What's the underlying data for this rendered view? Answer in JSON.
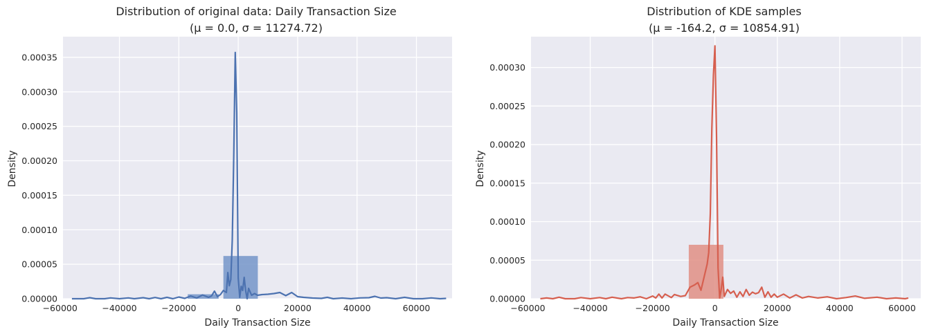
{
  "chart_data": [
    {
      "type": "histogram+kde",
      "title": "Distribution of original data: Daily Transaction Size",
      "subtitle": "(μ = 0.0, σ = 11274.72)",
      "xlabel": "Daily Transaction Size",
      "ylabel": "Density",
      "xlim": [
        -59000,
        72000
      ],
      "ylim": [
        0,
        0.00038
      ],
      "xticks": [
        -60000,
        -40000,
        -20000,
        0,
        20000,
        40000,
        60000
      ],
      "xtick_labels": [
        "−60000",
        "−40000",
        "−20000",
        "0",
        "20000",
        "40000",
        "60000"
      ],
      "yticks": [
        0,
        5e-05,
        0.0001,
        0.00015,
        0.0002,
        0.00025,
        0.0003,
        0.00035
      ],
      "ytick_labels": [
        "0.00000",
        "0.00005",
        "0.00010",
        "0.00015",
        "0.00020",
        "0.00025",
        "0.00030",
        "0.00035"
      ],
      "grid": true,
      "colors": {
        "line": "#4c72b0",
        "bar": "#7495c9"
      },
      "histogram": [
        {
          "x0": -17000,
          "x1": -6600,
          "value": 6.5e-06
        },
        {
          "x0": -5000,
          "x1": 6600,
          "value": 6.2e-05
        }
      ],
      "kde": [
        [
          -56000,
          0
        ],
        [
          -52000,
          0
        ],
        [
          -50000,
          1.5e-06
        ],
        [
          -48000,
          0
        ],
        [
          -45000,
          0
        ],
        [
          -43000,
          1.2e-06
        ],
        [
          -40000,
          0
        ],
        [
          -37000,
          1.2e-06
        ],
        [
          -35000,
          0
        ],
        [
          -32000,
          1.5e-06
        ],
        [
          -30000,
          0
        ],
        [
          -28000,
          1.8e-06
        ],
        [
          -26000,
          0
        ],
        [
          -24000,
          2e-06
        ],
        [
          -22000,
          0
        ],
        [
          -20000,
          2.5e-06
        ],
        [
          -18000,
          5e-07
        ],
        [
          -16000,
          4e-06
        ],
        [
          -14000,
          1e-06
        ],
        [
          -12000,
          5.5e-06
        ],
        [
          -10000,
          2e-06
        ],
        [
          -9000,
          4e-06
        ],
        [
          -8000,
          1.1e-05
        ],
        [
          -7000,
          3e-06
        ],
        [
          -6000,
          6e-06
        ],
        [
          -5000,
          1.2e-05
        ],
        [
          -4000,
          9e-06
        ],
        [
          -3500,
          3.8e-05
        ],
        [
          -3000,
          1.9e-05
        ],
        [
          -2500,
          2.8e-05
        ],
        [
          -2000,
          8.5e-05
        ],
        [
          -1500,
          0.00021
        ],
        [
          -1000,
          0.000357
        ],
        [
          -500,
          0.00027
        ],
        [
          0,
          3e-05
        ],
        [
          500,
          2e-06
        ],
        [
          1000,
          1.8e-05
        ],
        [
          1500,
          1.2e-05
        ],
        [
          2000,
          3.1e-05
        ],
        [
          2500,
          1.2e-05
        ],
        [
          3000,
          0
        ],
        [
          3500,
          1.5e-05
        ],
        [
          4500,
          5e-06
        ],
        [
          5500,
          7.5e-06
        ],
        [
          6500,
          5e-06
        ],
        [
          8000,
          6e-06
        ],
        [
          10000,
          6.5e-06
        ],
        [
          12000,
          7.5e-06
        ],
        [
          14000,
          9e-06
        ],
        [
          16000,
          4.5e-06
        ],
        [
          18000,
          9e-06
        ],
        [
          20000,
          3e-06
        ],
        [
          22000,
          2e-06
        ],
        [
          25000,
          1e-06
        ],
        [
          28000,
          5e-07
        ],
        [
          30000,
          2e-06
        ],
        [
          32000,
          0
        ],
        [
          35000,
          1e-06
        ],
        [
          38000,
          0
        ],
        [
          41000,
          1.2e-06
        ],
        [
          44000,
          1.5e-06
        ],
        [
          46000,
          3.5e-06
        ],
        [
          48000,
          1e-06
        ],
        [
          50000,
          1.5e-06
        ],
        [
          53000,
          0
        ],
        [
          56000,
          2e-06
        ],
        [
          59000,
          0
        ],
        [
          62000,
          0
        ],
        [
          65000,
          1.2e-06
        ],
        [
          68000,
          0
        ],
        [
          70000,
          5e-07
        ]
      ]
    },
    {
      "type": "histogram+kde",
      "title": "Distribution of KDE samples",
      "subtitle": "(μ = -164.2, σ = 10854.91)",
      "xlabel": "Daily Transaction Size",
      "ylabel": "Density",
      "xlim": [
        -59000,
        66000
      ],
      "ylim": [
        0,
        0.00034
      ],
      "xticks": [
        -60000,
        -40000,
        -20000,
        0,
        20000,
        40000,
        60000
      ],
      "xtick_labels": [
        "−60000",
        "−40000",
        "−20000",
        "0",
        "20000",
        "40000",
        "60000"
      ],
      "yticks": [
        0,
        5e-05,
        0.0001,
        0.00015,
        0.0002,
        0.00025,
        0.0003
      ],
      "ytick_labels": [
        "0.00000",
        "0.00005",
        "0.00010",
        "0.00015",
        "0.00020",
        "0.00025",
        "0.00030"
      ],
      "grid": true,
      "colors": {
        "line": "#d65f4f",
        "bar": "#e08f85"
      },
      "histogram": [
        {
          "x0": -8400,
          "x1": 2700,
          "value": 7e-05
        }
      ],
      "kde": [
        [
          -56000,
          0
        ],
        [
          -54000,
          1e-06
        ],
        [
          -52000,
          0
        ],
        [
          -50000,
          2e-06
        ],
        [
          -48000,
          0
        ],
        [
          -45000,
          0
        ],
        [
          -43000,
          1.5e-06
        ],
        [
          -40000,
          0
        ],
        [
          -37000,
          1.5e-06
        ],
        [
          -35000,
          0
        ],
        [
          -33000,
          2e-06
        ],
        [
          -30000,
          0
        ],
        [
          -28000,
          1.5e-06
        ],
        [
          -26000,
          1e-06
        ],
        [
          -24000,
          2.5e-06
        ],
        [
          -22000,
          0
        ],
        [
          -20000,
          3.5e-06
        ],
        [
          -19000,
          1e-06
        ],
        [
          -18000,
          6e-06
        ],
        [
          -17000,
          1e-06
        ],
        [
          -16000,
          6e-06
        ],
        [
          -14000,
          1.5e-06
        ],
        [
          -13000,
          5.5e-06
        ],
        [
          -11000,
          3e-06
        ],
        [
          -9500,
          4e-06
        ],
        [
          -8000,
          1.5e-05
        ],
        [
          -6500,
          1.8e-05
        ],
        [
          -5500,
          2.1e-05
        ],
        [
          -4500,
          1.1e-05
        ],
        [
          -3500,
          2.8e-05
        ],
        [
          -2500,
          4.5e-05
        ],
        [
          -2000,
          6e-05
        ],
        [
          -1500,
          0.00011
        ],
        [
          -1000,
          0.00022
        ],
        [
          -500,
          0.00029
        ],
        [
          0,
          0.000328
        ],
        [
          500,
          0.00021
        ],
        [
          1000,
          4e-05
        ],
        [
          1500,
          1e-06
        ],
        [
          2000,
          1.2e-05
        ],
        [
          2500,
          2.8e-05
        ],
        [
          3000,
          3e-06
        ],
        [
          4000,
          1.2e-05
        ],
        [
          5000,
          7e-06
        ],
        [
          6000,
          1e-05
        ],
        [
          7000,
          2e-06
        ],
        [
          8000,
          9e-06
        ],
        [
          9000,
          3e-06
        ],
        [
          10000,
          1.2e-05
        ],
        [
          11000,
          4.5e-06
        ],
        [
          12000,
          8.5e-06
        ],
        [
          13000,
          6.5e-06
        ],
        [
          14000,
          8e-06
        ],
        [
          15000,
          1.5e-05
        ],
        [
          16000,
          2e-06
        ],
        [
          17000,
          9e-06
        ],
        [
          18000,
          2e-06
        ],
        [
          19000,
          6e-06
        ],
        [
          20000,
          2e-06
        ],
        [
          22000,
          6e-06
        ],
        [
          24000,
          1e-06
        ],
        [
          26000,
          5e-06
        ],
        [
          28000,
          1e-06
        ],
        [
          30000,
          3e-06
        ],
        [
          33000,
          1e-06
        ],
        [
          36000,
          2.5e-06
        ],
        [
          39000,
          0
        ],
        [
          42000,
          1.5e-06
        ],
        [
          45000,
          3.5e-06
        ],
        [
          48000,
          5e-07
        ],
        [
          52000,
          2e-06
        ],
        [
          55000,
          0
        ],
        [
          58000,
          1e-06
        ],
        [
          61000,
          0
        ],
        [
          62000,
          1e-06
        ]
      ]
    }
  ]
}
